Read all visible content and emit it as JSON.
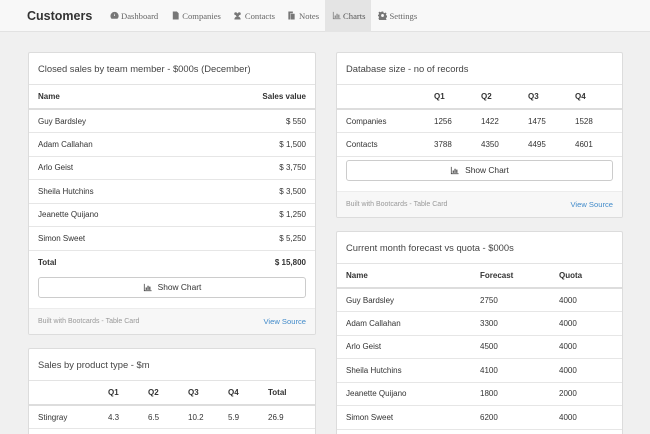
{
  "brand": "Customers",
  "nav": [
    {
      "label": "Dashboard",
      "icon": "dashboard-icon"
    },
    {
      "label": "Companies",
      "icon": "document-icon"
    },
    {
      "label": "Contacts",
      "icon": "users-icon"
    },
    {
      "label": "Notes",
      "icon": "notes-icon"
    },
    {
      "label": "Charts",
      "icon": "bar-chart-icon",
      "active": true
    },
    {
      "label": "Settings",
      "icon": "gear-icon"
    }
  ],
  "closed_sales": {
    "title": "Closed sales by team member - $000s (December)",
    "col_name": "Name",
    "col_value": "Sales value",
    "rows": [
      {
        "name": "Guy Bardsley",
        "value": "$ 550"
      },
      {
        "name": "Adam Callahan",
        "value": "$ 1,500"
      },
      {
        "name": "Arlo Geist",
        "value": "$ 3,750"
      },
      {
        "name": "Sheila Hutchins",
        "value": "$ 3,500"
      },
      {
        "name": "Jeanette Quijano",
        "value": "$ 1,250"
      },
      {
        "name": "Simon Sweet",
        "value": "$ 5,250"
      }
    ],
    "total_label": "Total",
    "total_value": "$ 15,800",
    "button": "Show Chart",
    "footer_note": "Built with Bootcards - Table Card",
    "footer_link": "View Source"
  },
  "database_size": {
    "title": "Database size - no of records",
    "columns": [
      "",
      "Q1",
      "Q2",
      "Q3",
      "Q4"
    ],
    "rows": [
      [
        "Companies",
        "1256",
        "1422",
        "1475",
        "1528"
      ],
      [
        "Contacts",
        "3788",
        "4350",
        "4495",
        "4601"
      ]
    ],
    "button": "Show Chart",
    "footer_note": "Built with Bootcards - Table Card",
    "footer_link": "View Source"
  },
  "forecast": {
    "title": "Current month forecast vs quota - $000s",
    "columns": [
      "Name",
      "Forecast",
      "Quota"
    ],
    "rows": [
      [
        "Guy Bardsley",
        "2750",
        "4000"
      ],
      [
        "Adam Callahan",
        "3300",
        "4000"
      ],
      [
        "Arlo Geist",
        "4500",
        "4000"
      ],
      [
        "Sheila Hutchins",
        "4100",
        "4000"
      ],
      [
        "Jeanette Quijano",
        "1800",
        "2000"
      ],
      [
        "Simon Sweet",
        "6200",
        "4000"
      ]
    ]
  },
  "product_sales": {
    "title": "Sales by product type - $m",
    "columns": [
      "",
      "Q1",
      "Q2",
      "Q3",
      "Q4",
      "Total"
    ],
    "rows": [
      [
        "Stingray",
        "4.3",
        "6.5",
        "10.2",
        "5.9",
        "26.9"
      ]
    ]
  }
}
